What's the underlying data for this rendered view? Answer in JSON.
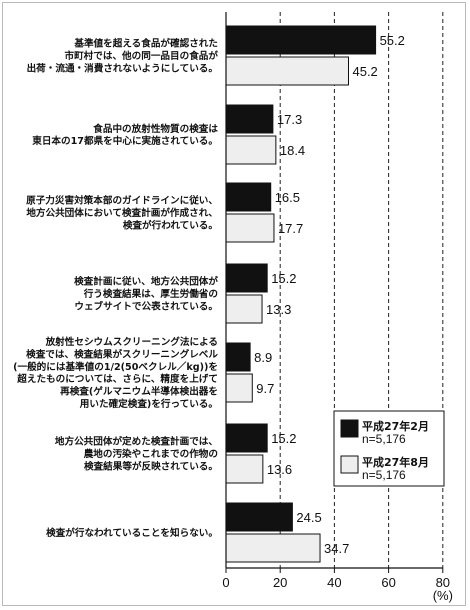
{
  "chart_data": {
    "type": "bar",
    "orientation": "horizontal",
    "unit": "(%)",
    "xlim": [
      0,
      80
    ],
    "xticks": [
      "0",
      "20",
      "40",
      "60",
      "80"
    ],
    "categories": [
      [
        "基準値を超える食品が確認された",
        "市町村では、他の同一品目の食品が",
        "出荷・流通・消費されないようにしている。"
      ],
      [
        "食品中の放射性物質の検査は",
        "東日本の17都県を中心に実施されている。"
      ],
      [
        "原子力災害対策本部のガイドラインに従い、",
        "地方公共団体において検査計画が作成され、",
        "検査が行われている。"
      ],
      [
        "検査計画に従い、地方公共団体が",
        "行う検査結果は、厚生労働省の",
        "ウェブサイトで公表されている。"
      ],
      [
        "放射性セシウムスクリーニング法による",
        "検査では、検査結果がスクリーニングレベル",
        "(一般的には基準値の1/2(50ベクレル／kg))を",
        "超えたものについては、さらに、精度を上げて",
        "再検査(ゲルマニウム半導体検出器を",
        "用いた確定検査)を行っている。"
      ],
      [
        "地方公共団体が定めた検査計画では、",
        "農地の汚染やこれまでの作物の",
        "検査結果等が反映されている。"
      ],
      [
        "検査が行なわれていることを知らない。"
      ]
    ],
    "series": [
      {
        "name": "平成27年2月",
        "n": "n=5,176",
        "color": "#111111",
        "values": [
          55.2,
          17.3,
          16.5,
          15.2,
          8.9,
          15.2,
          24.5
        ]
      },
      {
        "name": "平成27年8月",
        "n": "n=5,176",
        "color": "#eeeeee",
        "values": [
          45.2,
          18.4,
          17.7,
          13.3,
          9.7,
          13.6,
          34.7
        ]
      }
    ],
    "value_labels": [
      [
        "55.2",
        "17.3",
        "16.5",
        "15.2",
        "8.9",
        "15.2",
        "24.5"
      ],
      [
        "45.2",
        "18.4",
        "17.7",
        "13.3",
        "9.7",
        "13.6",
        "34.7"
      ]
    ],
    "legend_position": "bottom-right",
    "gridlines": "dashed"
  }
}
